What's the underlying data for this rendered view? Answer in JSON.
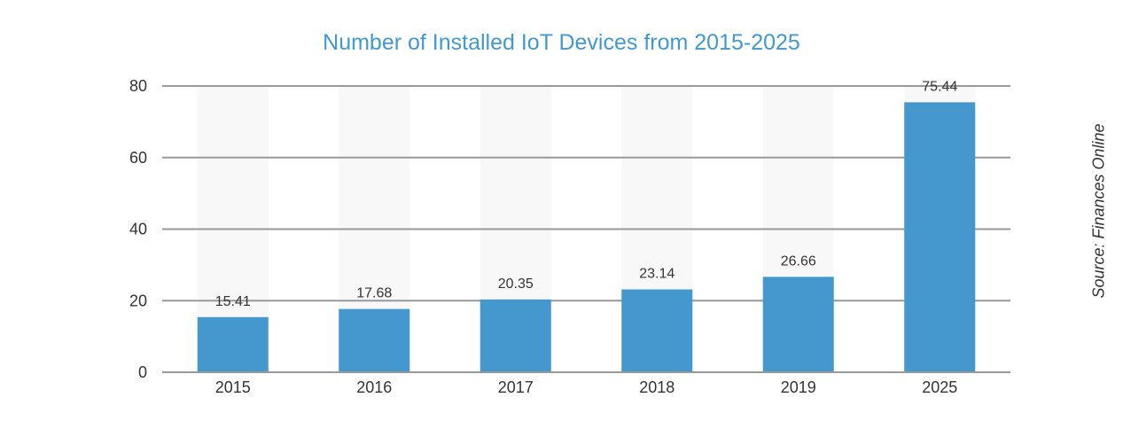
{
  "chart_data": {
    "type": "bar",
    "title": "Number of Installed IoT Devices from 2015-2025",
    "categories": [
      "2015",
      "2016",
      "2017",
      "2018",
      "2019",
      "2025"
    ],
    "values": [
      15.41,
      17.68,
      20.35,
      23.14,
      26.66,
      75.44
    ],
    "data_labels": [
      "15.41",
      "17.68",
      "20.35",
      "23.14",
      "26.66",
      "75.44"
    ],
    "xlabel": "",
    "ylabel": "",
    "ylim": [
      0,
      80
    ],
    "yticks": [
      0,
      20,
      40,
      60,
      80
    ],
    "grid": true,
    "bar_color": "#4498CD",
    "title_color": "#4299CF",
    "source": "Source: Finances Online"
  }
}
